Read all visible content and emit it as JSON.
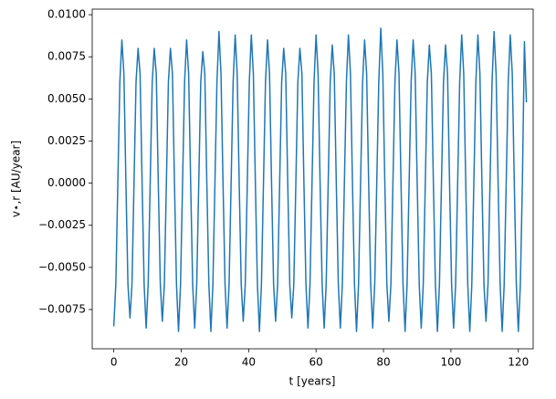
{
  "chart_data": {
    "type": "line",
    "xlabel": "t [years]",
    "ylabel": "v⋆,r [AU/year]",
    "xlim": [
      -6.4,
      124.4
    ],
    "ylim": [
      -0.00983,
      0.01033
    ],
    "xticks": [
      0,
      20,
      40,
      60,
      80,
      100,
      120
    ],
    "yticks": [
      {
        "value": -0.0075,
        "label": "−0.0075"
      },
      {
        "value": -0.005,
        "label": "−0.0050"
      },
      {
        "value": -0.0025,
        "label": "−0.0025"
      },
      {
        "value": 0,
        "label": "0.0000"
      },
      {
        "value": 0.0025,
        "label": "0.0025"
      },
      {
        "value": 0.005,
        "label": "0.0050"
      },
      {
        "value": 0.0075,
        "label": "0.0075"
      },
      {
        "value": 0.01,
        "label": "0.0100"
      }
    ],
    "color": "#1f77b4",
    "x": [
      0,
      0.6,
      1.2,
      1.8,
      2.4,
      3,
      3.6,
      4.2,
      4.8,
      5.4,
      6,
      6.6,
      7.2,
      7.8,
      8.4,
      9,
      9.6,
      10.2,
      10.8,
      11.4,
      12,
      12.6,
      13.2,
      13.8,
      14.4,
      15,
      15.6,
      16.2,
      16.8,
      17.4,
      18,
      18.6,
      19.2,
      19.8,
      20.4,
      21,
      21.6,
      22.2,
      22.8,
      23.4,
      24,
      24.6,
      25.2,
      25.8,
      26.4,
      27,
      27.6,
      28.2,
      28.8,
      29.4,
      30,
      30.6,
      31.2,
      31.8,
      32.4,
      33,
      33.6,
      34.2,
      34.8,
      35.4,
      36,
      36.6,
      37.2,
      37.8,
      38.4,
      39,
      39.6,
      40.2,
      40.8,
      41.4,
      42,
      42.6,
      43.2,
      43.8,
      44.4,
      45,
      45.6,
      46.2,
      46.8,
      47.4,
      48,
      48.6,
      49.2,
      49.8,
      50.4,
      51,
      51.6,
      52.2,
      52.8,
      53.4,
      54,
      54.6,
      55.2,
      55.8,
      56.4,
      57,
      57.6,
      58.2,
      58.8,
      59.4,
      60,
      60.6,
      61.2,
      61.8,
      62.4,
      63,
      63.6,
      64.2,
      64.8,
      65.4,
      66,
      66.6,
      67.2,
      67.8,
      68.4,
      69,
      69.6,
      70.2,
      70.8,
      71.4,
      72,
      72.6,
      73.2,
      73.8,
      74.4,
      75,
      75.6,
      76.2,
      76.8,
      77.4,
      78,
      78.6,
      79.2,
      79.8,
      80.4,
      81,
      81.6,
      82.2,
      82.8,
      83.4,
      84,
      84.6,
      85.2,
      85.8,
      86.4,
      87,
      87.6,
      88.2,
      88.8,
      89.4,
      90,
      90.6,
      91.2,
      91.8,
      92.4,
      93,
      93.6,
      94.2,
      94.8,
      95.4,
      96,
      96.6,
      97.2,
      97.8,
      98.4,
      99,
      99.6,
      100.2,
      100.8,
      101.4,
      102,
      102.6,
      103.2,
      103.8,
      104.4,
      105,
      105.6,
      106.2,
      106.8,
      107.4,
      108,
      108.6,
      109.2,
      109.8,
      110.4,
      111,
      111.6,
      112.2,
      112.8,
      113.4,
      114,
      114.6,
      115.2,
      115.8,
      116.4,
      117,
      117.6,
      118.2,
      118.8,
      119.4,
      120,
      120.6,
      121.2,
      121.8,
      122.4
    ],
    "values": [
      -0.0085,
      -0.006,
      0,
      0.006,
      0.0085,
      0.0065,
      0,
      -0.006,
      -0.008,
      -0.006,
      0,
      0.006,
      0.008,
      0.0065,
      0,
      -0.006,
      -0.0086,
      -0.006,
      0,
      0.006,
      0.008,
      0.0065,
      0,
      -0.006,
      -0.0082,
      -0.006,
      0,
      0.006,
      0.008,
      0.0065,
      0,
      -0.006,
      -0.0088,
      -0.006,
      0,
      0.006,
      0.0085,
      0.0065,
      0,
      -0.006,
      -0.0086,
      -0.006,
      0,
      0.006,
      0.0078,
      0.0065,
      0,
      -0.006,
      -0.0088,
      -0.006,
      0,
      0.006,
      0.009,
      0.0065,
      0,
      -0.006,
      -0.0086,
      -0.006,
      0,
      0.006,
      0.0088,
      0.0065,
      0,
      -0.006,
      -0.0082,
      -0.006,
      0,
      0.006,
      0.0088,
      0.0065,
      0,
      -0.006,
      -0.0088,
      -0.006,
      0,
      0.006,
      0.0085,
      0.0065,
      0,
      -0.006,
      -0.0082,
      -0.006,
      0,
      0.006,
      0.008,
      0.0065,
      0,
      -0.006,
      -0.008,
      -0.006,
      0,
      0.006,
      0.008,
      0.0065,
      0,
      -0.006,
      -0.0086,
      -0.006,
      0,
      0.006,
      0.0088,
      0.0065,
      0,
      -0.006,
      -0.0086,
      -0.006,
      0,
      0.006,
      0.0082,
      0.0065,
      0,
      -0.006,
      -0.0086,
      -0.006,
      0,
      0.006,
      0.0088,
      0.0065,
      0,
      -0.006,
      -0.0088,
      -0.006,
      0,
      0.006,
      0.0085,
      0.0065,
      0,
      -0.006,
      -0.0086,
      -0.006,
      0,
      0.006,
      0.0092,
      0.0065,
      0,
      -0.006,
      -0.0082,
      -0.006,
      0,
      0.006,
      0.0085,
      0.0065,
      0,
      -0.006,
      -0.0088,
      -0.006,
      0,
      0.006,
      0.0085,
      0.0065,
      0,
      -0.006,
      -0.0086,
      -0.006,
      0,
      0.006,
      0.0082,
      0.0065,
      0,
      -0.006,
      -0.0088,
      -0.006,
      0,
      0.006,
      0.0082,
      0.0065,
      0,
      -0.006,
      -0.0086,
      -0.006,
      0,
      0.006,
      0.0088,
      0.0065,
      0,
      -0.006,
      -0.0088,
      -0.006,
      0,
      0.006,
      0.0088,
      0.0065,
      0,
      -0.006,
      -0.0082,
      -0.006,
      0,
      0.006,
      0.009,
      0.0065,
      0,
      -0.006,
      -0.0088,
      -0.006,
      0,
      0.006,
      0.0088,
      0.0065,
      0,
      -0.006,
      -0.0088,
      -0.006,
      0,
      0.0084,
      0.0048
    ]
  }
}
